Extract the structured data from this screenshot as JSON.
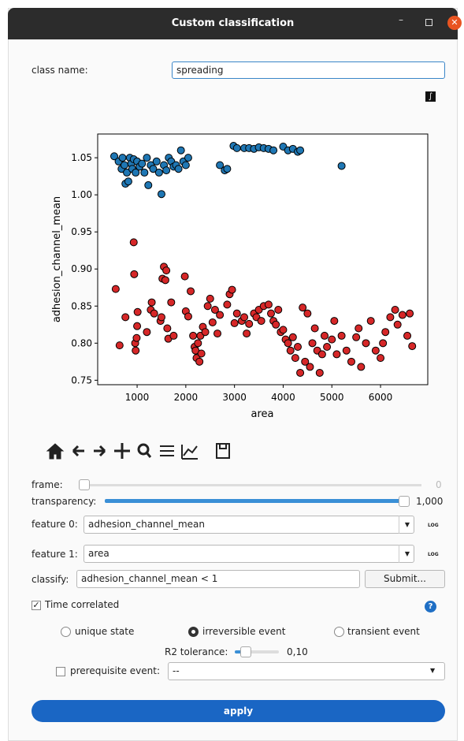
{
  "window": {
    "title": "Custom classification"
  },
  "form": {
    "class_name": {
      "label": "class name:",
      "value": "spreading"
    },
    "frame": {
      "label": "frame:",
      "value": "0"
    },
    "transparency": {
      "label": "transparency:",
      "value": "1,000"
    },
    "feature_0": {
      "label": "feature 0:",
      "value": "adhesion_channel_mean",
      "log": "LOG"
    },
    "feature_1": {
      "label": "feature 1:",
      "value": "area",
      "log": "LOG"
    },
    "classify": {
      "label": "classify:",
      "value": "adhesion_channel_mean < 1",
      "button": "Submit..."
    },
    "time_correlated": {
      "label": "Time correlated",
      "checked": true
    },
    "event_types": [
      "unique state",
      "irreversible event",
      "transient event"
    ],
    "selected_event": 1,
    "r2_tolerance": {
      "label": "R2 tolerance:",
      "value": "0,10"
    },
    "prerequisite": {
      "label": "prerequisite event:",
      "value": "--",
      "checked": false
    },
    "apply": "apply"
  },
  "chart_data": {
    "type": "scatter",
    "xlabel": "area",
    "ylabel": "adhesion_channel_mean",
    "xlim": [
      190,
      6970
    ],
    "ylim": [
      0.744,
      1.082
    ],
    "xticks": [
      1000,
      2000,
      3000,
      4000,
      5000,
      6000
    ],
    "yticks": [
      0.75,
      {
        "value": 0.8,
        "label": "0.80"
      },
      0.85,
      {
        "value": 0.9,
        "label": "0.90"
      },
      0.95,
      {
        "value": 1.0,
        "label": "1.00"
      },
      1.05
    ],
    "series": [
      {
        "color": "#d62728",
        "x": [
          560,
          640,
          760,
          930,
          940,
          960,
          990,
          1000,
          1010,
          970,
          1200,
          1280,
          1300,
          1350,
          1480,
          1500,
          1520,
          1550,
          1600,
          1580,
          1620,
          1640,
          1700,
          1750,
          1980,
          2000,
          2050,
          2100,
          2150,
          2180,
          2200,
          2220,
          2250,
          2280,
          2300,
          2320,
          2350,
          2400,
          2450,
          2500,
          2550,
          2600,
          2650,
          2700,
          2850,
          2900,
          2950,
          3000,
          3050,
          3150,
          3200,
          3250,
          3300,
          3400,
          3450,
          3500,
          3550,
          3600,
          3700,
          3750,
          3800,
          3850,
          3900,
          3950,
          4000,
          4050,
          4100,
          4150,
          4200,
          4250,
          4300,
          4350,
          4400,
          4450,
          4500,
          4550,
          4600,
          4650,
          4700,
          4750,
          4800,
          4850,
          4900,
          5000,
          5050,
          5100,
          5200,
          5300,
          5400,
          5500,
          5550,
          5600,
          5700,
          5800,
          5900,
          6000,
          6050,
          6100,
          6200,
          6300,
          6350,
          6450,
          6550,
          6600,
          6650
        ],
        "values": [
          0.873,
          0.797,
          0.835,
          0.936,
          0.893,
          0.8,
          0.807,
          0.823,
          0.842,
          0.79,
          0.815,
          0.845,
          0.855,
          0.84,
          0.83,
          0.835,
          0.887,
          0.903,
          0.898,
          0.885,
          0.82,
          0.806,
          0.855,
          0.81,
          0.89,
          0.843,
          0.836,
          0.87,
          0.81,
          0.795,
          0.79,
          0.78,
          0.8,
          0.775,
          0.81,
          0.786,
          0.822,
          0.815,
          0.85,
          0.86,
          0.828,
          0.845,
          0.813,
          0.838,
          0.852,
          0.866,
          0.872,
          0.827,
          0.84,
          0.83,
          0.835,
          0.813,
          0.826,
          0.84,
          0.835,
          0.845,
          0.83,
          0.85,
          0.852,
          0.84,
          0.83,
          0.825,
          0.845,
          0.815,
          0.818,
          0.805,
          0.8,
          0.79,
          0.808,
          0.78,
          0.795,
          0.76,
          0.848,
          0.775,
          0.84,
          0.768,
          0.8,
          0.82,
          0.79,
          0.76,
          0.785,
          0.81,
          0.795,
          0.805,
          0.83,
          0.785,
          0.81,
          0.79,
          0.775,
          0.808,
          0.82,
          0.768,
          0.8,
          0.83,
          0.79,
          0.78,
          0.8,
          0.815,
          0.835,
          0.845,
          0.825,
          0.838,
          0.81,
          0.84,
          0.796
        ]
      },
      {
        "color": "#1f77b4",
        "x": [
          530,
          620,
          680,
          700,
          740,
          760,
          790,
          820,
          850,
          880,
          900,
          930,
          970,
          1000,
          1050,
          1100,
          1150,
          1200,
          1230,
          1280,
          1330,
          1400,
          1450,
          1500,
          1550,
          1600,
          1650,
          1700,
          1750,
          1800,
          1850,
          1900,
          1950,
          2000,
          2050,
          2700,
          2800,
          2850,
          2980,
          3050,
          3200,
          3300,
          3400,
          3500,
          3600,
          3700,
          3800,
          4000,
          4100,
          4200,
          4300,
          4350,
          5200
        ],
        "values": [
          1.052,
          1.045,
          1.035,
          1.05,
          1.04,
          1.015,
          1.03,
          1.018,
          1.05,
          1.042,
          1.035,
          1.048,
          1.03,
          1.045,
          1.038,
          1.042,
          1.03,
          1.05,
          1.013,
          1.04,
          1.035,
          1.045,
          1.03,
          1.001,
          1.04,
          1.033,
          1.05,
          1.045,
          1.038,
          1.04,
          1.035,
          1.06,
          1.045,
          1.04,
          1.05,
          1.04,
          1.033,
          1.035,
          1.066,
          1.063,
          1.063,
          1.063,
          1.062,
          1.064,
          1.063,
          1.062,
          1.06,
          1.065,
          1.06,
          1.062,
          1.058,
          1.06,
          1.039
        ]
      }
    ]
  }
}
